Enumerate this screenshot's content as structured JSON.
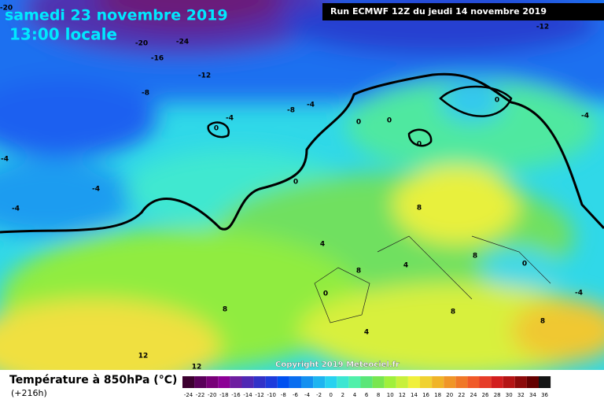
{
  "header": {
    "title": "samedi 23 novembre 2019",
    "time": "13:00 locale",
    "run": "Run ECMWF 12Z du jeudi 14 novembre 2019"
  },
  "copyright": "Copyright 2019 Meteociel.fr",
  "legend": {
    "title": "Température à 850hPa (°C)",
    "lead": "(+216h)",
    "labels": [
      -24,
      -22,
      -20,
      -18,
      -16,
      -14,
      -12,
      -10,
      -8,
      -6,
      -4,
      -2,
      0,
      2,
      4,
      6,
      8,
      10,
      12,
      14,
      16,
      18,
      20,
      22,
      24,
      26,
      28,
      30,
      32,
      34,
      36
    ],
    "colors": [
      "#3c0030",
      "#5a005a",
      "#780078",
      "#8c0096",
      "#6e1ea0",
      "#5028b4",
      "#3232c8",
      "#1e3cdc",
      "#0050f0",
      "#0a6ef0",
      "#1490f0",
      "#1eb4f0",
      "#28d2f0",
      "#3ce6d2",
      "#50f0aa",
      "#5ae678",
      "#78e650",
      "#a0f03c",
      "#c8f03c",
      "#f0f03c",
      "#f0d232",
      "#f0b428",
      "#f09628",
      "#f07828",
      "#f05a28",
      "#e63c28",
      "#d21e1e",
      "#b41414",
      "#8c0a0a",
      "#640000",
      "#141414"
    ]
  },
  "map": {
    "contour_labels": [
      -20,
      -24,
      -16,
      -12,
      -12,
      -20,
      -8,
      -8,
      -4,
      0,
      -4,
      0,
      0,
      0,
      0,
      -4,
      -4,
      -4,
      -4,
      0,
      4,
      8,
      4,
      8,
      8,
      0,
      0,
      -4,
      4,
      8,
      8,
      8,
      12,
      12
    ]
  }
}
